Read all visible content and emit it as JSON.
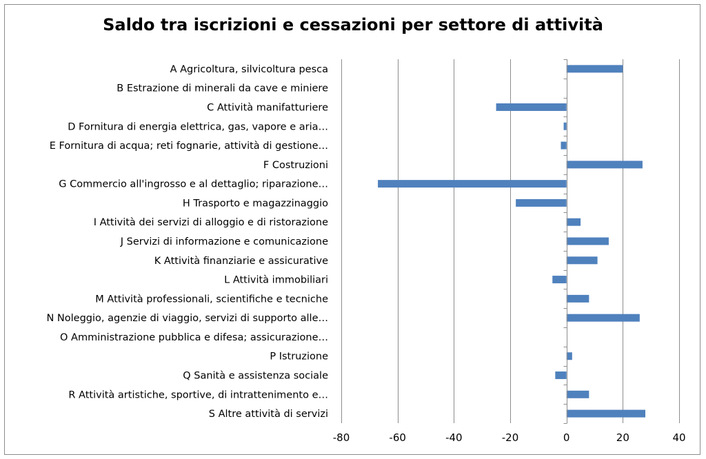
{
  "chart_data": {
    "type": "bar",
    "orientation": "horizontal",
    "title": "Saldo tra iscrizioni e cessazioni per settore di attività",
    "xlabel": "",
    "ylabel": "",
    "xlim": [
      -80,
      40
    ],
    "xticks": [
      -80,
      -60,
      -40,
      -20,
      0,
      20,
      40
    ],
    "xtick_labels": [
      "-80",
      "-60",
      "-40",
      "-20",
      "0",
      "20",
      "40"
    ],
    "grid": "vertical",
    "legend": "none",
    "bar_color": "#4f81bd",
    "categories": [
      "A Agricoltura, silvicoltura pesca",
      "B Estrazione di minerali da cave e miniere",
      "C Attività manifatturiere",
      "D Fornitura di energia elettrica, gas, vapore e aria…",
      "E Fornitura di acqua; reti fognarie, attività di gestione…",
      "F Costruzioni",
      "G Commercio all'ingrosso e al dettaglio; riparazione…",
      "H Trasporto e magazzinaggio",
      "I Attività dei servizi di alloggio e di ristorazione",
      "J Servizi di informazione e comunicazione",
      "K Attività finanziarie e assicurative",
      "L Attività immobiliari",
      "M Attività professionali, scientifiche e tecniche",
      "N Noleggio, agenzie di viaggio, servizi di supporto alle…",
      "O Amministrazione pubblica e difesa; assicurazione…",
      "P Istruzione",
      "Q Sanità e assistenza sociale",
      "R Attività artistiche, sportive, di intrattenimento e…",
      "S Altre attività di servizi"
    ],
    "values": [
      20,
      0,
      -25,
      -1,
      -2,
      27,
      -67,
      -18,
      5,
      15,
      11,
      -5,
      8,
      26,
      0,
      2,
      -4,
      8,
      28
    ]
  }
}
